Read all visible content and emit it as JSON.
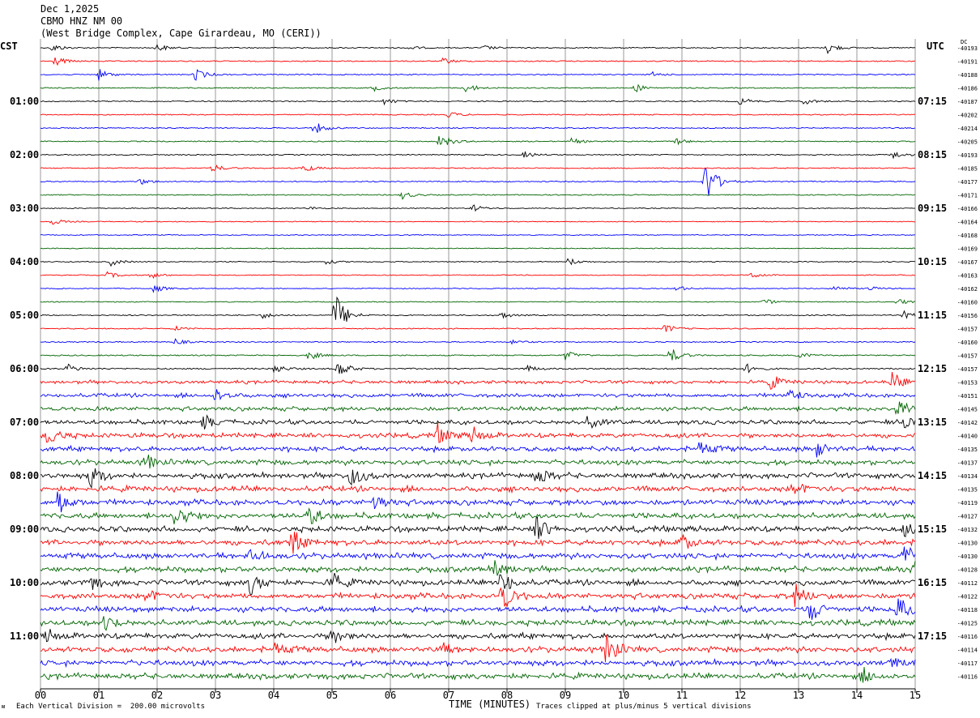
{
  "header": {
    "date": "Dec 1,2025",
    "station": "CBMO HNZ NM 00",
    "location": "(West Bridge Complex, Cape Girardeau, MO (CERI))"
  },
  "left_zone_label": "CST",
  "right_zone_label": "UTC",
  "dc_label": "DC",
  "footer": {
    "scale_note": "Each Vertical Division =  200.00 microvolts",
    "clip_note": "Traces clipped at plus/minus 5 vertical divisions",
    "corner_mark": "ᴍ"
  },
  "colors": {
    "row_cycle": [
      "#000000",
      "#ff0000",
      "#0000ff",
      "#006400"
    ],
    "grid": "#808080"
  },
  "chart_data": {
    "type": "helicorder",
    "xlabel": "TIME (MINUTES)",
    "x_ticks": [
      "00",
      "01",
      "02",
      "03",
      "04",
      "05",
      "06",
      "07",
      "08",
      "09",
      "10",
      "11",
      "12",
      "13",
      "14",
      "15"
    ],
    "xlim": [
      0,
      15
    ],
    "left_time_labels": [
      "01:00",
      "02:00",
      "03:00",
      "04:00",
      "05:00",
      "06:00",
      "07:00",
      "08:00",
      "09:00",
      "10:00",
      "11:00"
    ],
    "right_time_labels": [
      "07:15",
      "08:15",
      "09:15",
      "10:15",
      "11:15",
      "12:15",
      "13:15",
      "14:15",
      "15:15",
      "16:15",
      "17:15"
    ],
    "row_minutes": 15,
    "dc_offsets": [
      "-40193",
      "-40191",
      "-40188",
      "-40186",
      "-40187",
      "-40202",
      "-40214",
      "-40205",
      "-40193",
      "-40185",
      "-40177",
      "-40171",
      "-40166",
      "-40164",
      "-40168",
      "-40169",
      "-40167",
      "-40163",
      "-40162",
      "-40160",
      "-40156",
      "-40157",
      "-40160",
      "-40157",
      "-40157",
      "-40153",
      "-40151",
      "-40145",
      "-40142",
      "-40140",
      "-40135",
      "-40137",
      "-40134",
      "-40135",
      "-40119",
      "-40127",
      "-40132",
      "-40130",
      "-40130",
      "-40128",
      "-40112",
      "-40122",
      "-40118",
      "-40125",
      "-40116",
      "-40114",
      "-40117",
      "-40116"
    ],
    "row_noise_levels": [
      0.6,
      0.6,
      0.6,
      0.6,
      0.6,
      0.6,
      0.6,
      0.6,
      0.6,
      0.6,
      0.6,
      0.6,
      0.5,
      0.5,
      0.5,
      0.5,
      0.5,
      0.5,
      0.5,
      0.5,
      0.6,
      0.6,
      0.6,
      0.7,
      0.8,
      1.2,
      1.4,
      1.5,
      1.6,
      1.7,
      1.8,
      1.8,
      1.9,
      2.0,
      2.0,
      2.0,
      2.0,
      2.0,
      2.0,
      2.0,
      2.0,
      2.0,
      2.0,
      2.0,
      2.0,
      2.0,
      2.0,
      2.0
    ],
    "events": [
      {
        "row": 0,
        "minute": 0.2,
        "amp": 5
      },
      {
        "row": 0,
        "minute": 2.0,
        "amp": 5
      },
      {
        "row": 0,
        "minute": 6.3,
        "amp": 3
      },
      {
        "row": 0,
        "minute": 7.6,
        "amp": 3
      },
      {
        "row": 0,
        "minute": 13.5,
        "amp": 7
      },
      {
        "row": 1,
        "minute": 0.25,
        "amp": 6
      },
      {
        "row": 1,
        "minute": 6.9,
        "amp": 4
      },
      {
        "row": 2,
        "minute": 1.0,
        "amp": 7
      },
      {
        "row": 2,
        "minute": 2.65,
        "amp": 8
      },
      {
        "row": 2,
        "minute": 10.5,
        "amp": 3
      },
      {
        "row": 3,
        "minute": 5.7,
        "amp": 4
      },
      {
        "row": 3,
        "minute": 7.3,
        "amp": 6
      },
      {
        "row": 3,
        "minute": 10.2,
        "amp": 5
      },
      {
        "row": 4,
        "minute": 5.9,
        "amp": 4
      },
      {
        "row": 4,
        "minute": 12.0,
        "amp": 5
      },
      {
        "row": 4,
        "minute": 13.1,
        "amp": 4
      },
      {
        "row": 5,
        "minute": 7.0,
        "amp": 4
      },
      {
        "row": 6,
        "minute": 4.7,
        "amp": 8
      },
      {
        "row": 7,
        "minute": 6.85,
        "amp": 10
      },
      {
        "row": 7,
        "minute": 9.1,
        "amp": 4
      },
      {
        "row": 7,
        "minute": 10.9,
        "amp": 4
      },
      {
        "row": 8,
        "minute": 8.3,
        "amp": 4
      },
      {
        "row": 8,
        "minute": 14.6,
        "amp": 5
      },
      {
        "row": 9,
        "minute": 2.95,
        "amp": 5
      },
      {
        "row": 9,
        "minute": 4.5,
        "amp": 6
      },
      {
        "row": 10,
        "minute": 1.7,
        "amp": 4
      },
      {
        "row": 10,
        "minute": 11.4,
        "amp": 30
      },
      {
        "row": 11,
        "minute": 6.2,
        "amp": 5
      },
      {
        "row": 12,
        "minute": 4.6,
        "amp": 2
      },
      {
        "row": 12,
        "minute": 7.4,
        "amp": 5
      },
      {
        "row": 13,
        "minute": 0.2,
        "amp": 4
      },
      {
        "row": 16,
        "minute": 1.2,
        "amp": 5
      },
      {
        "row": 16,
        "minute": 4.9,
        "amp": 3
      },
      {
        "row": 16,
        "minute": 9.05,
        "amp": 5
      },
      {
        "row": 17,
        "minute": 1.15,
        "amp": 4
      },
      {
        "row": 17,
        "minute": 1.9,
        "amp": 4
      },
      {
        "row": 17,
        "minute": 12.2,
        "amp": 4
      },
      {
        "row": 18,
        "minute": 1.95,
        "amp": 5
      },
      {
        "row": 18,
        "minute": 10.9,
        "amp": 4
      },
      {
        "row": 18,
        "minute": 13.6,
        "amp": 4
      },
      {
        "row": 18,
        "minute": 14.2,
        "amp": 3
      },
      {
        "row": 19,
        "minute": 12.4,
        "amp": 4
      },
      {
        "row": 19,
        "minute": 14.7,
        "amp": 4
      },
      {
        "row": 20,
        "minute": 3.8,
        "amp": 4
      },
      {
        "row": 20,
        "minute": 5.05,
        "amp": 30
      },
      {
        "row": 20,
        "minute": 7.9,
        "amp": 4
      },
      {
        "row": 20,
        "minute": 14.8,
        "amp": 5
      },
      {
        "row": 21,
        "minute": 2.3,
        "amp": 3
      },
      {
        "row": 21,
        "minute": 10.7,
        "amp": 6
      },
      {
        "row": 22,
        "minute": 2.3,
        "amp": 4
      },
      {
        "row": 22,
        "minute": 8.1,
        "amp": 3
      },
      {
        "row": 23,
        "minute": 4.6,
        "amp": 6
      },
      {
        "row": 23,
        "minute": 9.0,
        "amp": 6
      },
      {
        "row": 23,
        "minute": 10.8,
        "amp": 10
      },
      {
        "row": 23,
        "minute": 13.0,
        "amp": 4
      },
      {
        "row": 24,
        "minute": 0.45,
        "amp": 6
      },
      {
        "row": 24,
        "minute": 4.0,
        "amp": 6
      },
      {
        "row": 24,
        "minute": 5.1,
        "amp": 12
      },
      {
        "row": 24,
        "minute": 8.3,
        "amp": 5
      },
      {
        "row": 24,
        "minute": 12.1,
        "amp": 6
      },
      {
        "row": 25,
        "minute": 12.5,
        "amp": 10
      },
      {
        "row": 25,
        "minute": 14.6,
        "amp": 12
      },
      {
        "row": 26,
        "minute": 3.0,
        "amp": 8
      },
      {
        "row": 26,
        "minute": 12.8,
        "amp": 10
      },
      {
        "row": 27,
        "minute": 14.7,
        "amp": 18
      },
      {
        "row": 28,
        "minute": 2.8,
        "amp": 8
      },
      {
        "row": 28,
        "minute": 9.4,
        "amp": 10
      },
      {
        "row": 28,
        "minute": 14.8,
        "amp": 8
      },
      {
        "row": 29,
        "minute": 0.1,
        "amp": 14
      },
      {
        "row": 29,
        "minute": 6.8,
        "amp": 14
      },
      {
        "row": 29,
        "minute": 7.4,
        "amp": 10
      },
      {
        "row": 30,
        "minute": 11.3,
        "amp": 10
      },
      {
        "row": 30,
        "minute": 13.3,
        "amp": 10
      },
      {
        "row": 31,
        "minute": 1.8,
        "amp": 10
      },
      {
        "row": 32,
        "minute": 0.85,
        "amp": 14
      },
      {
        "row": 32,
        "minute": 5.3,
        "amp": 18
      },
      {
        "row": 32,
        "minute": 8.5,
        "amp": 12
      },
      {
        "row": 33,
        "minute": 12.9,
        "amp": 12
      },
      {
        "row": 34,
        "minute": 0.3,
        "amp": 16
      },
      {
        "row": 34,
        "minute": 5.7,
        "amp": 14
      },
      {
        "row": 35,
        "minute": 2.3,
        "amp": 18
      },
      {
        "row": 35,
        "minute": 4.6,
        "amp": 12
      },
      {
        "row": 36,
        "minute": 8.5,
        "amp": 16
      },
      {
        "row": 36,
        "minute": 14.8,
        "amp": 8
      },
      {
        "row": 37,
        "minute": 4.3,
        "amp": 16
      },
      {
        "row": 37,
        "minute": 11.0,
        "amp": 10
      },
      {
        "row": 38,
        "minute": 3.6,
        "amp": 10
      },
      {
        "row": 38,
        "minute": 14.8,
        "amp": 14
      },
      {
        "row": 39,
        "minute": 7.8,
        "amp": 14
      },
      {
        "row": 39,
        "minute": 15.0,
        "amp": 14
      },
      {
        "row": 40,
        "minute": 0.8,
        "amp": 14
      },
      {
        "row": 40,
        "minute": 3.6,
        "amp": 14
      },
      {
        "row": 40,
        "minute": 5.0,
        "amp": 12
      },
      {
        "row": 40,
        "minute": 7.9,
        "amp": 16
      },
      {
        "row": 41,
        "minute": 1.8,
        "amp": 10
      },
      {
        "row": 41,
        "minute": 7.9,
        "amp": 22
      },
      {
        "row": 41,
        "minute": 12.95,
        "amp": 14
      },
      {
        "row": 42,
        "minute": 13.2,
        "amp": 16
      },
      {
        "row": 42,
        "minute": 14.7,
        "amp": 16
      },
      {
        "row": 43,
        "minute": 1.1,
        "amp": 10
      },
      {
        "row": 44,
        "minute": 0.1,
        "amp": 8
      },
      {
        "row": 44,
        "minute": 5.0,
        "amp": 10
      },
      {
        "row": 45,
        "minute": 4.0,
        "amp": 10
      },
      {
        "row": 45,
        "minute": 6.8,
        "amp": 12
      },
      {
        "row": 45,
        "minute": 9.7,
        "amp": 22
      },
      {
        "row": 46,
        "minute": 14.6,
        "amp": 8
      },
      {
        "row": 47,
        "minute": 14.1,
        "amp": 10
      }
    ]
  }
}
